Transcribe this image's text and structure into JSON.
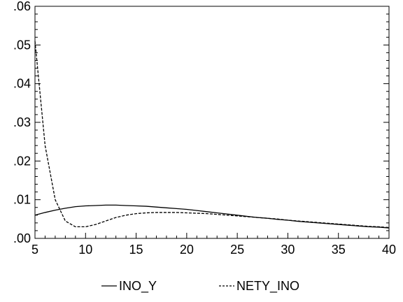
{
  "chart_data": {
    "type": "line",
    "xlim": [
      5,
      40
    ],
    "ylim": [
      0,
      0.06
    ],
    "x_ticks": [
      5,
      10,
      15,
      20,
      25,
      30,
      35,
      40
    ],
    "x_tick_labels": [
      "5",
      "10",
      "15",
      "20",
      "25",
      "30",
      "35",
      "40"
    ],
    "y_ticks": [
      0,
      0.01,
      0.02,
      0.03,
      0.04,
      0.05,
      0.06
    ],
    "y_tick_labels": [
      ".00",
      ".01",
      ".02",
      ".03",
      ".04",
      ".05",
      ".06"
    ],
    "grid": false,
    "legend_position": "bottom",
    "x": [
      5,
      6,
      7,
      8,
      9,
      10,
      11,
      12,
      13,
      14,
      15,
      16,
      17,
      18,
      19,
      20,
      21,
      22,
      23,
      24,
      25,
      26,
      27,
      28,
      29,
      30,
      31,
      32,
      33,
      34,
      35,
      36,
      37,
      38,
      39,
      40
    ],
    "series": [
      {
        "name": "INO_Y",
        "style": "solid",
        "color": "#000000",
        "values": [
          0.006,
          0.0067,
          0.0073,
          0.0078,
          0.0082,
          0.0084,
          0.0085,
          0.0086,
          0.0086,
          0.0085,
          0.0084,
          0.0083,
          0.0081,
          0.0079,
          0.0077,
          0.0075,
          0.0072,
          0.0069,
          0.0066,
          0.0063,
          0.006,
          0.0057,
          0.0054,
          0.0052,
          0.0049,
          0.0047,
          0.0044,
          0.0042,
          0.004,
          0.0038,
          0.0036,
          0.0034,
          0.0032,
          0.003,
          0.0029,
          0.0027
        ]
      },
      {
        "name": "NETY_INO",
        "style": "dashed",
        "color": "#000000",
        "values": [
          0.051,
          0.024,
          0.01,
          0.0045,
          0.003,
          0.003,
          0.0036,
          0.0045,
          0.0054,
          0.006,
          0.0064,
          0.0066,
          0.0067,
          0.0067,
          0.0067,
          0.0066,
          0.0065,
          0.0064,
          0.0062,
          0.006,
          0.0058,
          0.0056,
          0.0054,
          0.0052,
          0.005,
          0.0047,
          0.0045,
          0.0043,
          0.0041,
          0.0039,
          0.0037,
          0.0035,
          0.0033,
          0.0031,
          0.003,
          0.0028
        ]
      }
    ]
  }
}
